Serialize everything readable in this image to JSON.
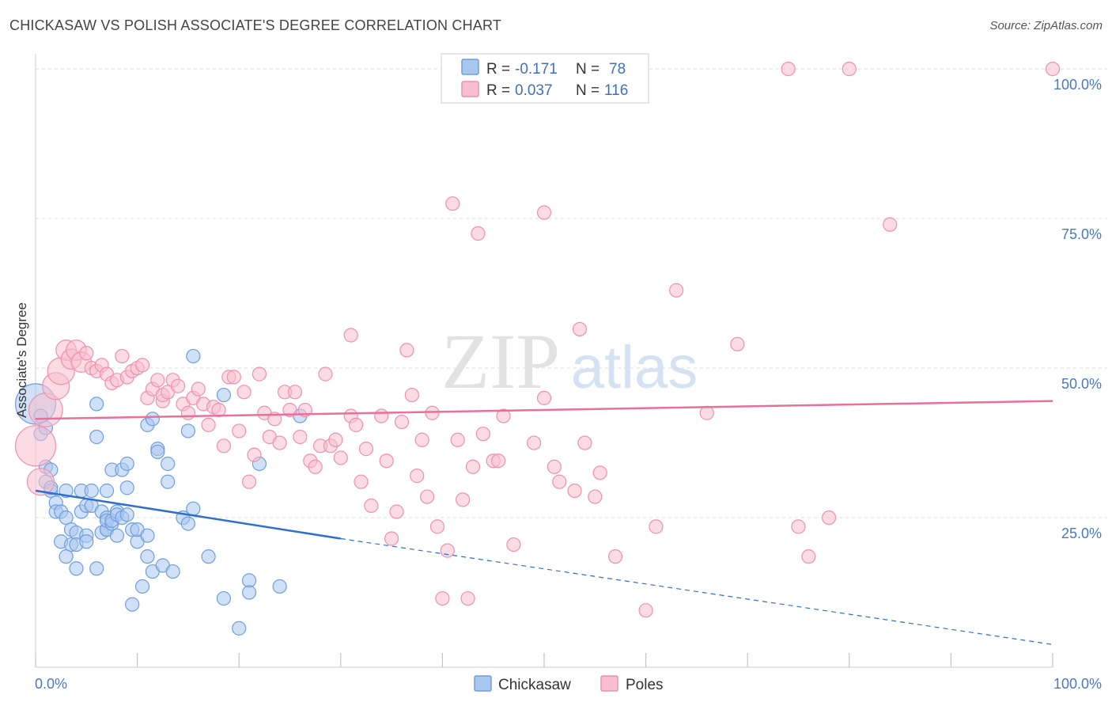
{
  "title": "CHICKASAW VS POLISH ASSOCIATE'S DEGREE CORRELATION CHART",
  "source": "Source: ZipAtlas.com",
  "watermark": {
    "zip": "ZIP",
    "atlas": "atlas"
  },
  "colors": {
    "chickasaw_fill": "#a9c6ee",
    "chickasaw_stroke": "#6f9fdc",
    "chickasaw_line": "#2e6fd0",
    "poles_fill": "#f7bfd0",
    "poles_stroke": "#ef8fae",
    "poles_line": "#e8709a",
    "axis_text": "#4a78c2",
    "grid": "#dddddd"
  },
  "legend": {
    "row1": {
      "r_label": "R =",
      "r_value": "-0.171",
      "n_label": "N =",
      "n_value": "78"
    },
    "row2": {
      "r_label": "R =",
      "r_value": "0.037",
      "n_label": "N =",
      "n_value": "116"
    }
  },
  "bottom_legend": {
    "series1": "Chickasaw",
    "series2": "Poles"
  },
  "chart_data": {
    "type": "scatter",
    "title": "CHICKASAW VS POLISH ASSOCIATE'S DEGREE CORRELATION CHART",
    "xlabel": "",
    "ylabel": "Associate's Degree",
    "xlim": [
      0,
      100
    ],
    "ylim": [
      0,
      102
    ],
    "x_tick_labels": [
      "0.0%",
      "100.0%"
    ],
    "y_ticks": [
      25,
      50,
      75,
      100
    ],
    "y_tick_labels": [
      "25.0%",
      "50.0%",
      "75.0%",
      "100.0%"
    ],
    "grid": "horizontal dashed",
    "legend_position": "top-center",
    "series": [
      {
        "name": "Chickasaw",
        "r": -0.171,
        "n": 78,
        "trend": {
          "x0": 0,
          "y0": 29.5,
          "x1": 30,
          "y1": 21.5,
          "dashed_to_x": 100,
          "dashed_to_y": 3.8
        },
        "points": [
          [
            0,
            44,
            3
          ],
          [
            0.5,
            42,
            1
          ],
          [
            0.5,
            39,
            1
          ],
          [
            1,
            40,
            1
          ],
          [
            1,
            33.5,
            1
          ],
          [
            1,
            31,
            1
          ],
          [
            1.5,
            33,
            1
          ],
          [
            1.5,
            29.5,
            1
          ],
          [
            1.5,
            30,
            1
          ],
          [
            2,
            27.5,
            1
          ],
          [
            2,
            26,
            1
          ],
          [
            2.5,
            26,
            1
          ],
          [
            2.5,
            21,
            1
          ],
          [
            3,
            25,
            1
          ],
          [
            3,
            29.5,
            1
          ],
          [
            3,
            18.5,
            1
          ],
          [
            3.5,
            20.5,
            1
          ],
          [
            3.5,
            23,
            1
          ],
          [
            4,
            22.5,
            1
          ],
          [
            4,
            16.5,
            1
          ],
          [
            4,
            20.5,
            1
          ],
          [
            4.5,
            29.5,
            1
          ],
          [
            4.5,
            26,
            1
          ],
          [
            5,
            22,
            1
          ],
          [
            5,
            27,
            1
          ],
          [
            5,
            21,
            1
          ],
          [
            5.5,
            27,
            1
          ],
          [
            5.5,
            29.5,
            1
          ],
          [
            6,
            44,
            1
          ],
          [
            6,
            38.5,
            1
          ],
          [
            6,
            16.5,
            1
          ],
          [
            6.5,
            22.5,
            1
          ],
          [
            6.5,
            26,
            1
          ],
          [
            7,
            23,
            1
          ],
          [
            7,
            29.5,
            1
          ],
          [
            7,
            23,
            1
          ],
          [
            7,
            25,
            1
          ],
          [
            7,
            24.5,
            1
          ],
          [
            7.5,
            33,
            1
          ],
          [
            7.5,
            24,
            1
          ],
          [
            7.5,
            24.5,
            1
          ],
          [
            8,
            22,
            1
          ],
          [
            8,
            26,
            1
          ],
          [
            8,
            25.5,
            1
          ],
          [
            8.5,
            33,
            1
          ],
          [
            8.5,
            25,
            1
          ],
          [
            9,
            34,
            1
          ],
          [
            9,
            25.5,
            1
          ],
          [
            9,
            30,
            1
          ],
          [
            9.5,
            10.5,
            1
          ],
          [
            9.5,
            23,
            1
          ],
          [
            10,
            21,
            1
          ],
          [
            10,
            23,
            1
          ],
          [
            10.5,
            13.5,
            1
          ],
          [
            11,
            18.5,
            1
          ],
          [
            11,
            22,
            1
          ],
          [
            11,
            40.5,
            1
          ],
          [
            11.5,
            41.5,
            1
          ],
          [
            11.5,
            16,
            1
          ],
          [
            12,
            36.5,
            1
          ],
          [
            12,
            36,
            1
          ],
          [
            12.5,
            17,
            1
          ],
          [
            13,
            34,
            1
          ],
          [
            13,
            31,
            1
          ],
          [
            13.5,
            16,
            1
          ],
          [
            14.5,
            25,
            1
          ],
          [
            15,
            39.5,
            1
          ],
          [
            15,
            24,
            1
          ],
          [
            15.5,
            52,
            1
          ],
          [
            15.5,
            26.5,
            1
          ],
          [
            17,
            18.5,
            1
          ],
          [
            18.5,
            11.5,
            1
          ],
          [
            18.5,
            45.5,
            1
          ],
          [
            20,
            6.5,
            1
          ],
          [
            21,
            14.5,
            1
          ],
          [
            21,
            12.5,
            1
          ],
          [
            22,
            34,
            1
          ],
          [
            24,
            13.5,
            1
          ],
          [
            26,
            42,
            1
          ]
        ]
      },
      {
        "name": "Poles",
        "r": 0.037,
        "n": 116,
        "trend": {
          "x0": 0,
          "y0": 41.5,
          "x1": 100,
          "y1": 44.5
        },
        "points": [
          [
            0,
            37,
            3
          ],
          [
            0.5,
            31,
            2
          ],
          [
            1,
            43,
            2.5
          ],
          [
            2,
            47,
            2
          ],
          [
            2.5,
            49.5,
            2
          ],
          [
            3,
            53,
            1.5
          ],
          [
            3.5,
            51.5,
            1.5
          ],
          [
            4,
            53,
            1.5
          ],
          [
            4.5,
            51,
            1.5
          ],
          [
            5,
            52.5,
            1
          ],
          [
            5.5,
            50,
            1
          ],
          [
            6,
            49.5,
            1
          ],
          [
            6.5,
            50.5,
            1
          ],
          [
            7,
            49,
            1
          ],
          [
            7.5,
            47.5,
            1
          ],
          [
            8,
            48,
            1
          ],
          [
            8.5,
            52,
            1
          ],
          [
            9,
            48.5,
            1
          ],
          [
            9.5,
            49.5,
            1
          ],
          [
            10,
            50,
            1
          ],
          [
            10.5,
            50.5,
            1
          ],
          [
            11,
            45,
            1
          ],
          [
            11.5,
            46.5,
            1
          ],
          [
            12,
            48,
            1
          ],
          [
            12.5,
            44.5,
            1
          ],
          [
            12.5,
            45.5,
            1
          ],
          [
            13,
            46,
            1
          ],
          [
            13.5,
            48,
            1
          ],
          [
            14,
            47,
            1
          ],
          [
            14.5,
            44,
            1
          ],
          [
            15,
            42.5,
            1
          ],
          [
            15.5,
            45,
            1
          ],
          [
            16,
            46.5,
            1
          ],
          [
            16.5,
            44,
            1
          ],
          [
            17,
            40.5,
            1
          ],
          [
            17.5,
            43.5,
            1
          ],
          [
            18,
            43,
            1
          ],
          [
            18.5,
            37,
            1
          ],
          [
            19,
            48.5,
            1
          ],
          [
            19.5,
            48.5,
            1
          ],
          [
            20,
            39.5,
            1
          ],
          [
            20.5,
            46,
            1
          ],
          [
            21,
            31,
            1
          ],
          [
            21.5,
            35.5,
            1
          ],
          [
            22,
            49,
            1
          ],
          [
            22.5,
            42.5,
            1
          ],
          [
            23,
            38.5,
            1
          ],
          [
            23.5,
            41.5,
            1
          ],
          [
            24,
            37.5,
            1
          ],
          [
            24.5,
            46,
            1
          ],
          [
            25,
            43,
            1
          ],
          [
            25.5,
            46,
            1
          ],
          [
            26,
            38.5,
            1
          ],
          [
            26.5,
            43,
            1
          ],
          [
            27,
            34.5,
            1
          ],
          [
            27.5,
            33.5,
            1
          ],
          [
            28,
            37,
            1
          ],
          [
            28.5,
            49,
            1
          ],
          [
            29,
            37,
            1
          ],
          [
            29.5,
            38,
            1
          ],
          [
            30,
            35,
            1
          ],
          [
            31,
            55.5,
            1
          ],
          [
            31,
            42,
            1
          ],
          [
            31.5,
            40.5,
            1
          ],
          [
            32,
            31,
            1
          ],
          [
            32.5,
            36.5,
            1
          ],
          [
            33,
            27,
            1
          ],
          [
            34,
            42,
            1
          ],
          [
            34.5,
            34.5,
            1
          ],
          [
            35,
            21.5,
            1
          ],
          [
            35.5,
            26,
            1
          ],
          [
            36,
            41,
            1
          ],
          [
            36.5,
            53,
            1
          ],
          [
            37,
            45.5,
            1
          ],
          [
            37.5,
            32,
            1
          ],
          [
            38,
            38,
            1
          ],
          [
            38.5,
            28.5,
            1
          ],
          [
            39,
            42.5,
            1
          ],
          [
            39.5,
            23.5,
            1
          ],
          [
            40,
            11.5,
            1
          ],
          [
            40.5,
            19.5,
            1
          ],
          [
            41,
            77.5,
            1
          ],
          [
            41.5,
            38,
            1
          ],
          [
            42,
            28,
            1
          ],
          [
            42.5,
            11.5,
            1
          ],
          [
            43,
            33.5,
            1
          ],
          [
            43.5,
            72.5,
            1
          ],
          [
            44,
            39,
            1
          ],
          [
            45,
            34.5,
            1
          ],
          [
            45.5,
            34.5,
            1
          ],
          [
            46,
            42,
            1
          ],
          [
            47,
            20.5,
            1
          ],
          [
            49,
            37.5,
            1
          ],
          [
            50,
            76,
            1
          ],
          [
            50,
            45,
            1
          ],
          [
            51,
            33.5,
            1
          ],
          [
            51.5,
            31,
            1
          ],
          [
            53,
            29.5,
            1
          ],
          [
            53.5,
            56.5,
            1
          ],
          [
            54,
            37.5,
            1
          ],
          [
            55,
            28.5,
            1
          ],
          [
            55.5,
            32.5,
            1
          ],
          [
            57,
            18.5,
            1
          ],
          [
            60,
            9.5,
            1
          ],
          [
            61,
            23.5,
            1
          ],
          [
            63,
            63,
            1
          ],
          [
            66,
            42.5,
            1
          ],
          [
            69,
            54,
            1
          ],
          [
            74,
            100,
            1
          ],
          [
            75,
            23.5,
            1
          ],
          [
            76,
            18.5,
            1
          ],
          [
            78,
            25,
            1
          ],
          [
            80,
            100,
            1
          ],
          [
            84,
            74,
            1
          ],
          [
            100,
            100,
            1
          ]
        ]
      }
    ]
  }
}
